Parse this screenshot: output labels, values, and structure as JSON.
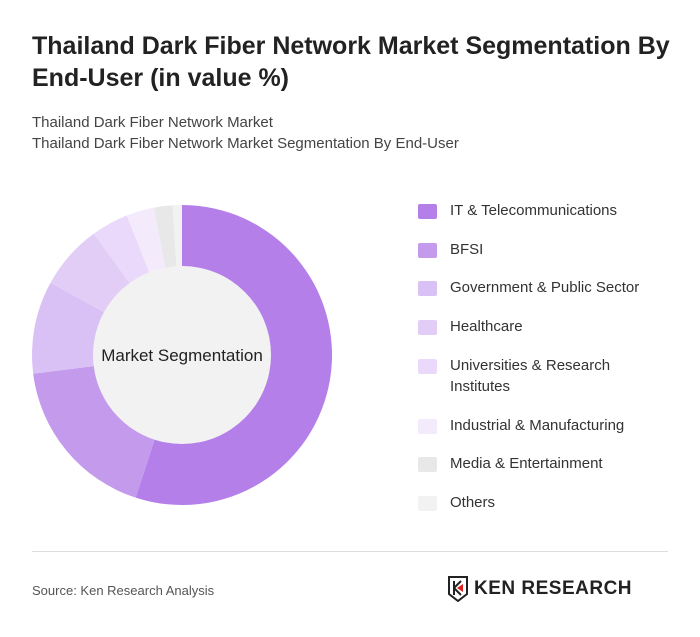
{
  "title": "Thailand Dark Fiber Network Market Segmentation By End-User (in value %)",
  "subtitle1": "Thailand Dark Fiber Network Market",
  "subtitle2": "Thailand Dark Fiber Network Market Segmentation By End-User",
  "source": "Source: Ken Research Analysis",
  "logo_text": "KEN RESEARCH",
  "chart_data": {
    "type": "pie",
    "variant": "donut",
    "center_label": "Market Segmentation",
    "legend_position": "right",
    "categories": [
      "IT & Telecommunications",
      "BFSI",
      "Government & Public Sector",
      "Healthcare",
      "Universities & Research Institutes",
      "Industrial & Manufacturing",
      "Media & Entertainment",
      "Others"
    ],
    "values": [
      55,
      18,
      10,
      7,
      4,
      3,
      2,
      1
    ],
    "colors": [
      "#b57fea",
      "#c49aed",
      "#d9c0f5",
      "#e2cdf7",
      "#ead9fa",
      "#f3ebfc",
      "#e8e8e8",
      "#f2f2f2"
    ]
  }
}
